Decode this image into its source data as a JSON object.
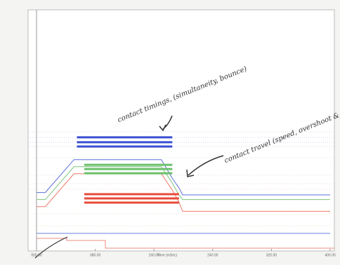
{
  "chart_data": {
    "type": "line",
    "xlabel": "Time (mSec)",
    "x": [
      0,
      12,
      51,
      55,
      65,
      170,
      185,
      194,
      199,
      400
    ],
    "xlim": [
      0,
      400
    ],
    "xticks": [
      {
        "value": 0,
        "label": "000.00"
      },
      {
        "value": 80,
        "label": "080.00"
      },
      {
        "value": 160,
        "label": "160.00"
      },
      {
        "value": 240,
        "label": "240.00"
      },
      {
        "value": 320,
        "label": "320.00"
      },
      {
        "value": 400,
        "label": "400.00"
      }
    ],
    "ylim": [
      0,
      100
    ],
    "series": [
      {
        "color": "#5a6fd8",
        "width": 1,
        "values": [
          24,
          24,
          38,
          38,
          38,
          38,
          30,
          26,
          23,
          23
        ]
      },
      {
        "color": "#7cc47c",
        "width": 1,
        "values": [
          21,
          21,
          35,
          35,
          35,
          35,
          28,
          23,
          21,
          21
        ]
      },
      {
        "color": "#f07a6a",
        "width": 1,
        "values": [
          18,
          18,
          32,
          32,
          32,
          32,
          25,
          20,
          16,
          16
        ]
      },
      {
        "color": "#3a4fd0",
        "width": 3,
        "values": [
          null,
          null,
          null,
          47.5,
          47.5,
          47.5,
          47.5,
          null,
          null,
          null
        ]
      },
      {
        "color": "#3a4fd0",
        "width": 3,
        "values": [
          null,
          null,
          null,
          45.4,
          45.4,
          45.4,
          45.4,
          null,
          null,
          null
        ]
      },
      {
        "color": "#3a4fd0",
        "width": 3,
        "values": [
          null,
          null,
          null,
          43.6,
          43.6,
          43.6,
          43.6,
          null,
          null,
          null
        ]
      },
      {
        "color": "#6cc06c",
        "width": 3,
        "values": [
          null,
          null,
          null,
          null,
          35.8,
          35.8,
          35.8,
          null,
          null,
          null
        ]
      },
      {
        "color": "#6cc06c",
        "width": 3,
        "values": [
          null,
          null,
          null,
          null,
          34,
          34,
          34,
          null,
          null,
          null
        ]
      },
      {
        "color": "#6cc06c",
        "width": 3,
        "values": [
          null,
          null,
          null,
          null,
          32.2,
          32.2,
          32.2,
          null,
          null,
          null
        ]
      },
      {
        "color": "#e84a3a",
        "width": 3,
        "values": [
          null,
          null,
          null,
          null,
          23.3,
          23.3,
          23.3,
          23.3,
          null,
          null
        ]
      },
      {
        "color": "#e84a3a",
        "width": 3,
        "values": [
          null,
          null,
          null,
          null,
          21.5,
          21.5,
          21.5,
          21.5,
          null,
          null
        ]
      },
      {
        "color": "#e84a3a",
        "width": 3,
        "values": [
          null,
          null,
          null,
          null,
          19.7,
          19.7,
          19.7,
          19.7,
          null,
          null
        ]
      },
      {
        "color": "#6a7fe0",
        "width": 1,
        "values": [
          6.6,
          6.6,
          6.6,
          6.6,
          6.6,
          6.6,
          6.6,
          6.6,
          6.6,
          6.6
        ]
      }
    ],
    "annotations": [
      "contact timings, (simultaneity, bounce)",
      "contact travel (speed, overshoot & rebound, insertion)"
    ]
  }
}
